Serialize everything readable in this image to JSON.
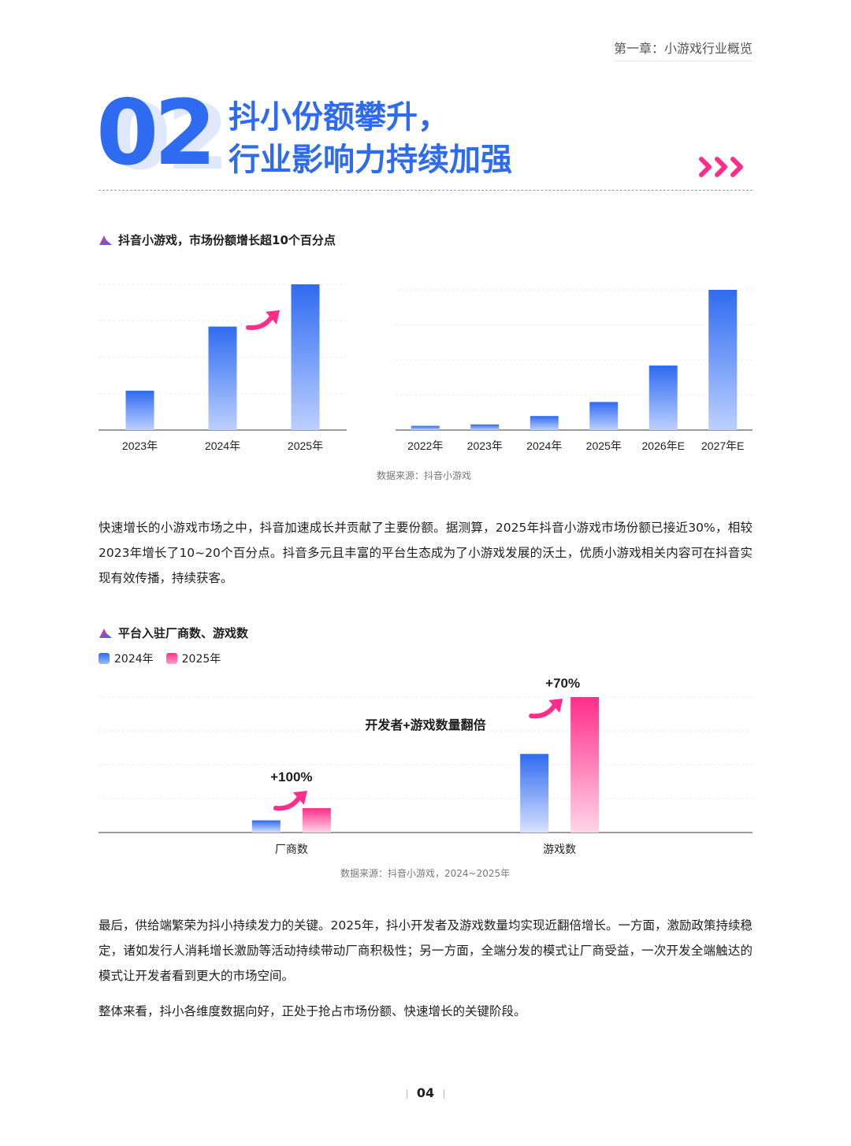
{
  "header": {
    "chapter": "第一章：小游戏行业概览",
    "section_number": "02",
    "title_line1": "抖小份额攀升，",
    "title_line2": "行业影响力持续加强"
  },
  "colors": {
    "brand_blue": "#2f6bf0",
    "brand_pink": "#ff2d8a"
  },
  "section1": {
    "subtitle": "抖音小游戏，市场份额增长超10个百分点",
    "source": "数据来源：抖音小游戏"
  },
  "paragraph1": "快速增长的小游戏市场之中，抖音加速成长并贡献了主要份额。据测算，2025年抖音小游戏市场份额已接近30%，相较2023年增长了10~20个百分点。抖音多元且丰富的平台生态成为了小游戏发展的沃土，优质小游戏相关内容可在抖音实现有效传播，持续获客。",
  "section2": {
    "subtitle": "平台入驻厂商数、游戏数",
    "legend_2024": "2024年",
    "legend_2025": "2025年",
    "source": "数据来源：抖音小游戏，2024~2025年"
  },
  "paragraph2": "最后，供给端繁荣为抖小持续发力的关键。2025年，抖小开发者及游戏数量均实现近翻倍增长。一方面，激励政策持续稳定，诸如发行人消耗增长激励等活动持续带动厂商积极性；另一方面，全端分发的模式让厂商受益，一次开发全端触达的模式让开发者看到更大的市场空间。",
  "paragraph3": "整体来看，抖小各维度数据向好，正处于抢占市场份额、快速增长的关键阶段。",
  "page_number": "04",
  "chart_data": [
    {
      "type": "bar",
      "categories": [
        "2023年",
        "2024年",
        "2025年"
      ],
      "values": [
        27,
        71,
        100
      ],
      "ylim": [
        0,
        100
      ],
      "grid": true,
      "annotations": [
        "up-arrow between 2024年 and 2025年"
      ]
    },
    {
      "type": "bar",
      "categories": [
        "2022年",
        "2023年",
        "2024年",
        "2025年",
        "2026年E",
        "2027年E"
      ],
      "values": [
        3,
        4,
        10,
        20,
        46,
        100
      ],
      "ylim": [
        0,
        100
      ],
      "grid": true
    },
    {
      "type": "bar",
      "categories": [
        "厂商数",
        "游戏数"
      ],
      "series": [
        {
          "name": "2024年",
          "values": [
            9,
            58
          ]
        },
        {
          "name": "2025年",
          "values": [
            18,
            100
          ]
        }
      ],
      "ylim": [
        0,
        100
      ],
      "annotations": [
        "+100%",
        "+70%",
        "开发者+游戏数量翻倍"
      ],
      "grid": true
    }
  ]
}
